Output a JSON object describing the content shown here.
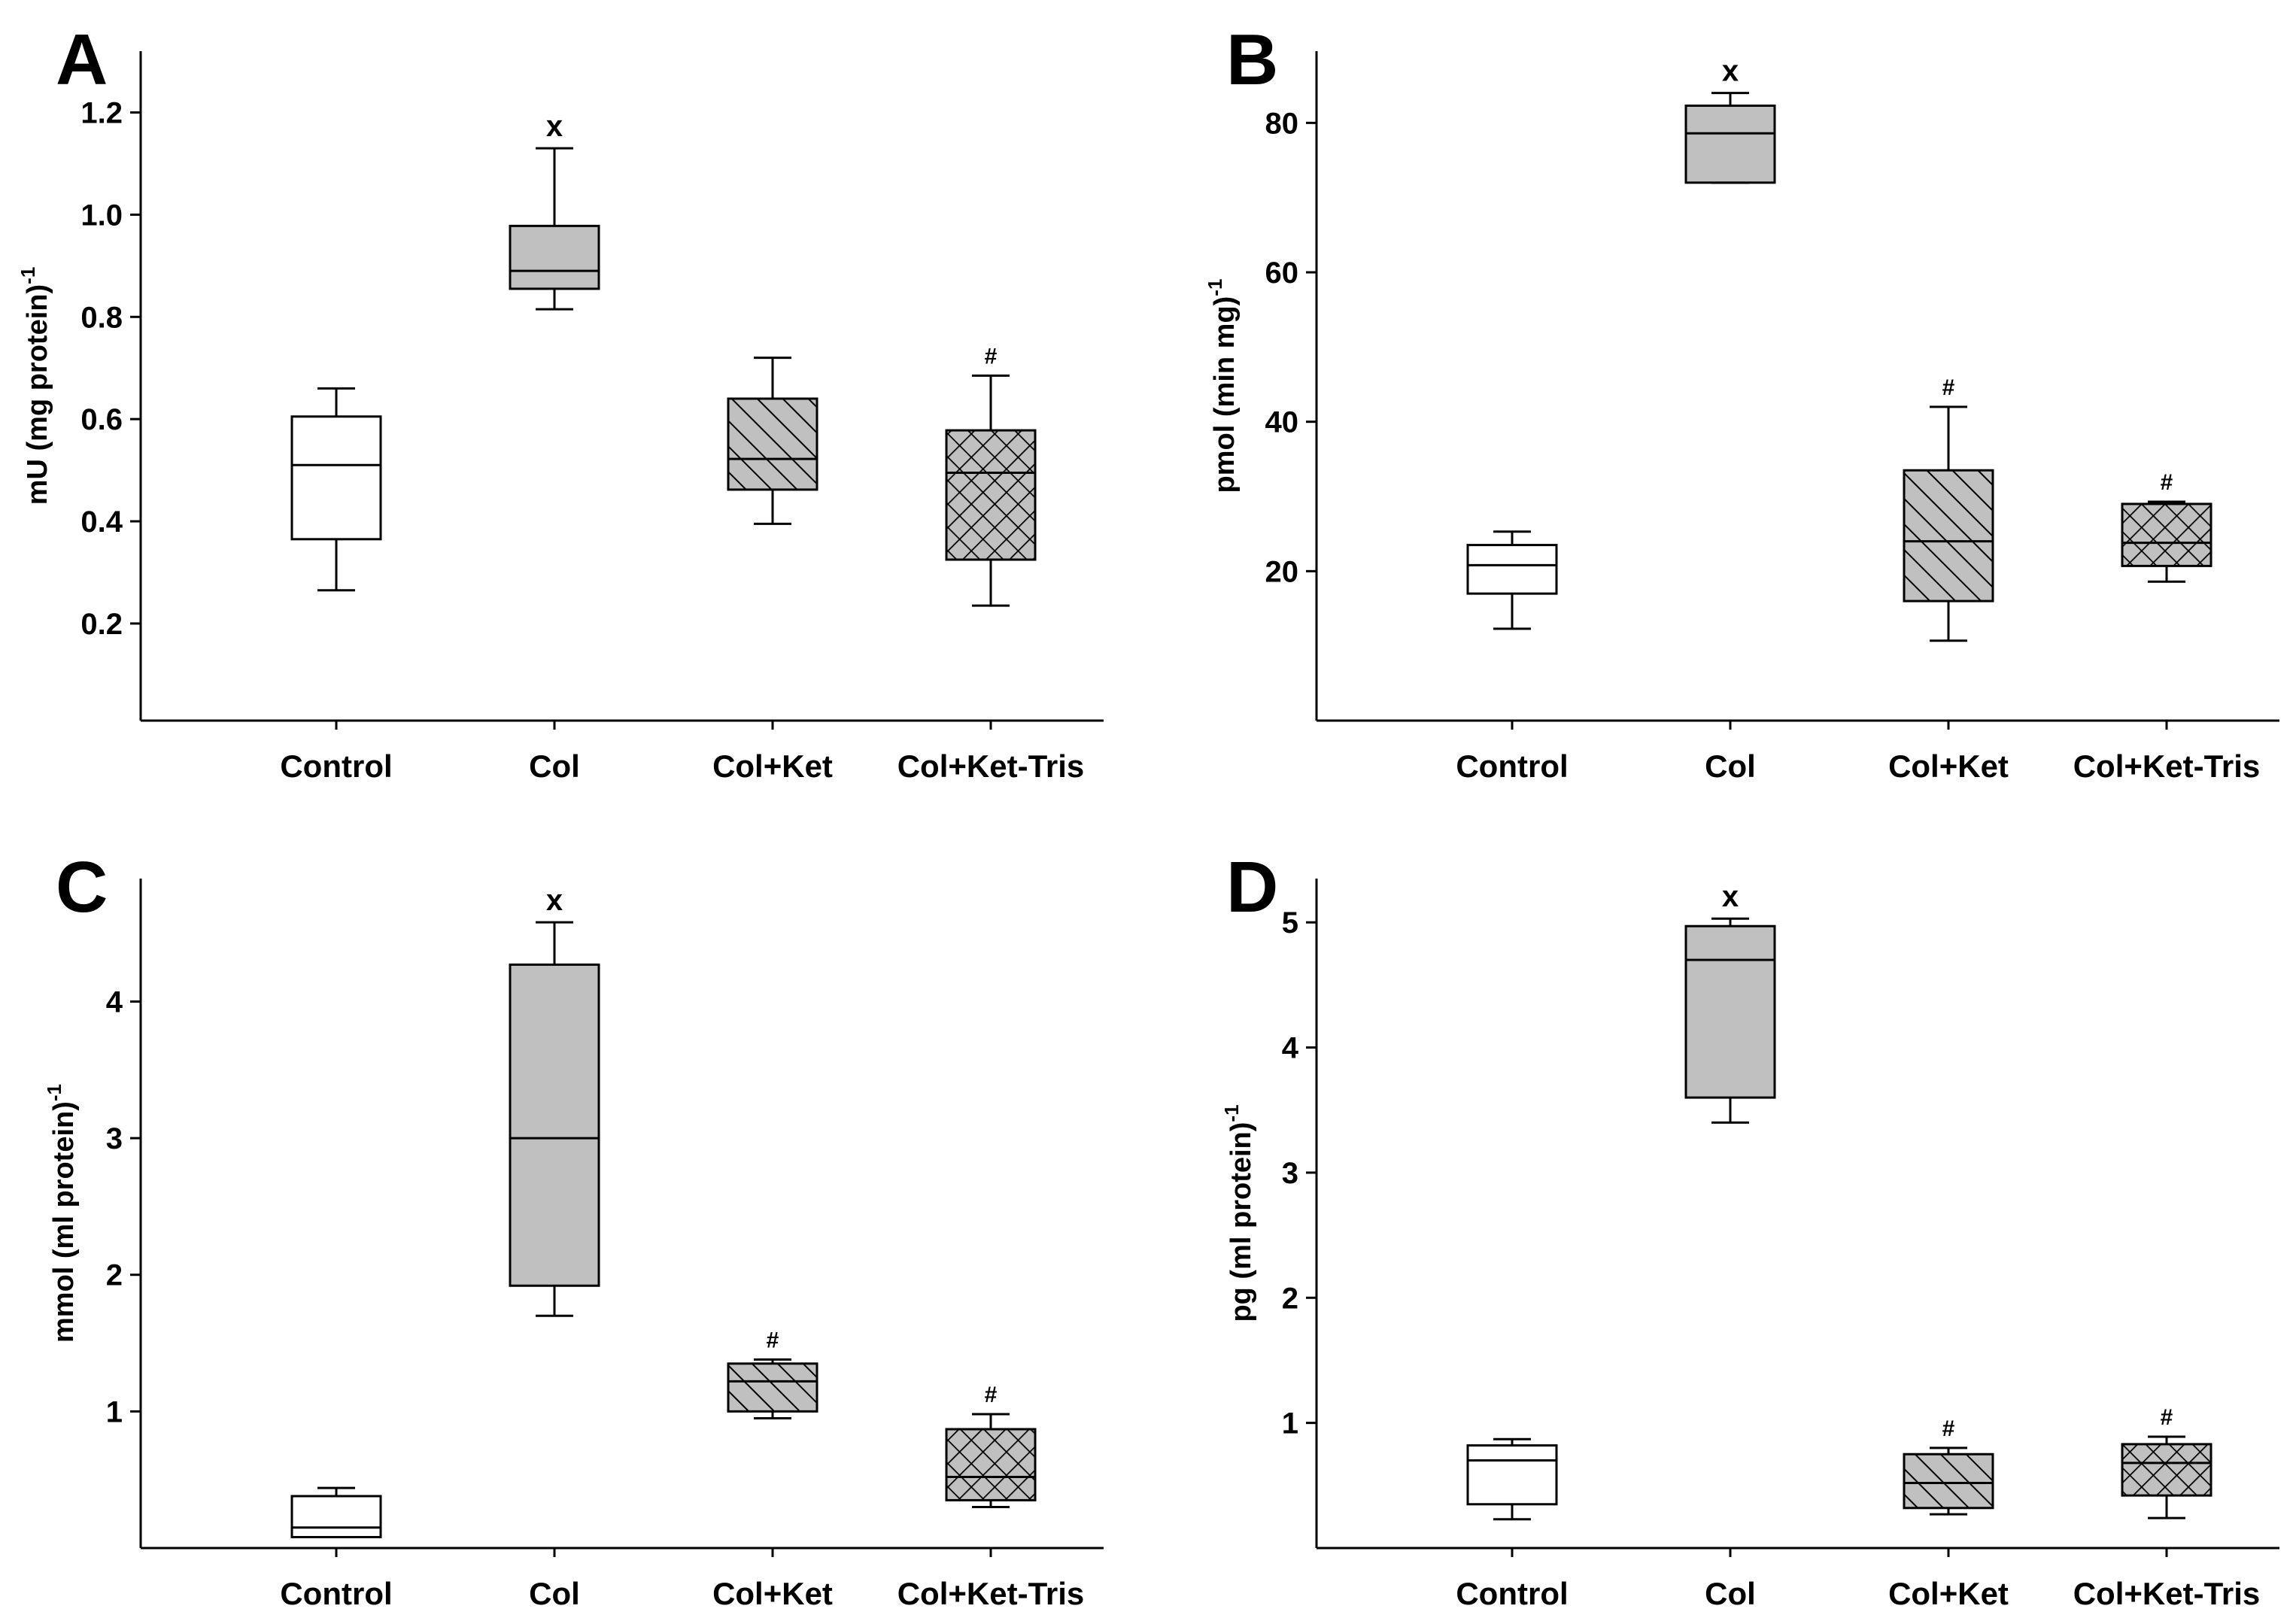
{
  "chart_data": [
    {
      "type": "box",
      "panel_label": "A",
      "ylabel": "mU (mg protein)",
      "ylabel_superscript": "-1",
      "categories": [
        "Control",
        "Col",
        "Col+Ket",
        "Col+Ket-Tris"
      ],
      "yticks": [
        "0.2",
        "0.4",
        "0.6",
        "0.8",
        "1.0",
        "1.2"
      ],
      "ylim": [
        0.01,
        1.32
      ],
      "boxes": [
        {
          "category": "Control",
          "min": 0.265,
          "q1": 0.365,
          "median": 0.51,
          "q3": 0.605,
          "max": 0.66,
          "marker": "",
          "fill": "none"
        },
        {
          "category": "Col",
          "min": 0.815,
          "q1": 0.855,
          "median": 0.89,
          "q3": 0.978,
          "max": 1.13,
          "marker": "x",
          "fill": "solid"
        },
        {
          "category": "Col+Ket",
          "min": 0.395,
          "q1": 0.462,
          "median": 0.522,
          "q3": 0.64,
          "max": 0.72,
          "marker": "",
          "fill": "hatch"
        },
        {
          "category": "Col+Ket-Tris",
          "min": 0.235,
          "q1": 0.325,
          "median": 0.495,
          "q3": 0.578,
          "max": 0.685,
          "marker": "#",
          "fill": "crosshatch"
        }
      ]
    },
    {
      "type": "box",
      "panel_label": "B",
      "ylabel": "pmol (min mg)",
      "ylabel_superscript": "-1",
      "categories": [
        "Control",
        "Col",
        "Col+Ket",
        "Col+Ket-Tris"
      ],
      "yticks": [
        "20",
        "40",
        "60",
        "80"
      ],
      "ylim": [
        0,
        89.6
      ],
      "boxes": [
        {
          "category": "Control",
          "min": 12.3,
          "q1": 17,
          "median": 20.8,
          "q3": 23.5,
          "max": 25.3,
          "marker": "",
          "fill": "none"
        },
        {
          "category": "Col",
          "min": 72,
          "q1": 72,
          "median": 78.6,
          "q3": 82.3,
          "max": 84,
          "marker": "x",
          "fill": "solid"
        },
        {
          "category": "Col+Ket",
          "min": 10.7,
          "q1": 16,
          "median": 24,
          "q3": 33.5,
          "max": 42,
          "marker": "#",
          "fill": "hatch"
        },
        {
          "category": "Col+Ket-Tris",
          "min": 18.6,
          "q1": 20.7,
          "median": 23.8,
          "q3": 29,
          "max": 29.3,
          "marker": "#",
          "fill": "crosshatch"
        }
      ]
    },
    {
      "type": "box",
      "panel_label": "C",
      "ylabel": "mmol (ml protein)",
      "ylabel_superscript": "-1",
      "categories": [
        "Control",
        "Col",
        "Col+Ket",
        "Col+Ket-Tris"
      ],
      "yticks": [
        "1",
        "2",
        "3",
        "4"
      ],
      "ylim": [
        0,
        4.9
      ],
      "boxes": [
        {
          "category": "Control",
          "min": 0.08,
          "q1": 0.08,
          "median": 0.15,
          "q3": 0.38,
          "max": 0.44,
          "marker": "",
          "fill": "none"
        },
        {
          "category": "Col",
          "min": 1.7,
          "q1": 1.92,
          "median": 3.0,
          "q3": 4.27,
          "max": 4.58,
          "marker": "x",
          "fill": "solid"
        },
        {
          "category": "Col+Ket",
          "min": 0.95,
          "q1": 1.0,
          "median": 1.22,
          "q3": 1.35,
          "max": 1.38,
          "marker": "#",
          "fill": "hatch"
        },
        {
          "category": "Col+Ket-Tris",
          "min": 0.3,
          "q1": 0.35,
          "median": 0.52,
          "q3": 0.87,
          "max": 0.98,
          "marker": "#",
          "fill": "crosshatch"
        }
      ]
    },
    {
      "type": "box",
      "panel_label": "D",
      "ylabel": "pg (ml protein)",
      "ylabel_superscript": "-1",
      "categories": [
        "Control",
        "Col",
        "Col+Ket",
        "Col+Ket-Tris"
      ],
      "yticks": [
        "1",
        "2",
        "3",
        "4",
        "5"
      ],
      "ylim": [
        0,
        5.35
      ],
      "boxes": [
        {
          "category": "Control",
          "min": 0.23,
          "q1": 0.35,
          "median": 0.7,
          "q3": 0.82,
          "max": 0.87,
          "marker": "",
          "fill": "none"
        },
        {
          "category": "Col",
          "min": 3.4,
          "q1": 3.6,
          "median": 4.7,
          "q3": 4.97,
          "max": 5.03,
          "marker": "x",
          "fill": "solid"
        },
        {
          "category": "Col+Ket",
          "min": 0.27,
          "q1": 0.32,
          "median": 0.52,
          "q3": 0.75,
          "max": 0.8,
          "marker": "#",
          "fill": "hatch"
        },
        {
          "category": "Col+Ket-Tris",
          "min": 0.24,
          "q1": 0.42,
          "median": 0.68,
          "q3": 0.83,
          "max": 0.89,
          "marker": "#",
          "fill": "crosshatch"
        }
      ]
    }
  ],
  "colors": {
    "box_solid_fill": "#c0c0c0",
    "box_outline": "#000000",
    "background": "#ffffff"
  }
}
